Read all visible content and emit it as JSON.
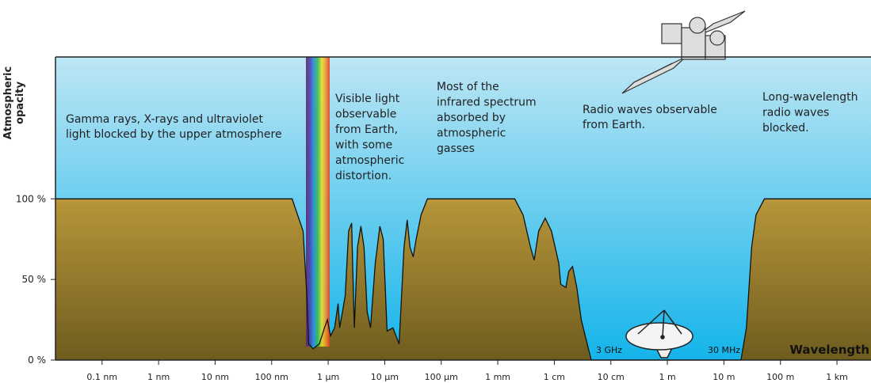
{
  "chart_data": {
    "type": "area",
    "ylabel": [
      "Atmospheric",
      "opacity"
    ],
    "xlabel": "Wavelength",
    "xscale": "log",
    "xlim": [
      1.5e-11,
      4000
    ],
    "ylim": [
      0,
      188
    ],
    "xticks": [
      {
        "value": 1e-10,
        "label": "0.1 nm"
      },
      {
        "value": 1e-09,
        "label": "1 nm"
      },
      {
        "value": 1e-08,
        "label": "10 nm"
      },
      {
        "value": 1e-07,
        "label": "100 nm"
      },
      {
        "value": 1e-06,
        "label": "1 µm"
      },
      {
        "value": 1e-05,
        "label": "10 µm"
      },
      {
        "value": 0.0001,
        "label": "100 µm"
      },
      {
        "value": 0.001,
        "label": "1 mm"
      },
      {
        "value": 0.01,
        "label": "1 cm"
      },
      {
        "value": 0.1,
        "label": "10 cm"
      },
      {
        "value": 1,
        "label": "1 m"
      },
      {
        "value": 10,
        "label": "10 m"
      },
      {
        "value": 100,
        "label": "100 m"
      },
      {
        "value": 1000,
        "label": "1 km"
      }
    ],
    "yticks": [
      {
        "value": 0,
        "label": "0 %"
      },
      {
        "value": 50,
        "label": "50 %"
      },
      {
        "value": 100,
        "label": "100 %"
      }
    ],
    "color": "#a8882e",
    "x": [
      1.5e-11,
      2.3e-07,
      3.6e-07,
      4.2e-07,
      4.5e-07,
      5.4e-07,
      7e-07,
      8.6e-07,
      9.7e-07,
      1.1e-06,
      1.3e-06,
      1.5e-06,
      1.6e-06,
      2e-06,
      2.3e-06,
      2.6e-06,
      2.7e-06,
      2.9e-06,
      3.3e-06,
      3.8e-06,
      4.3e-06,
      4.9e-06,
      5.6e-06,
      6.8e-06,
      8.2e-06,
      9.4e-06,
      1.1e-05,
      1.4e-05,
      1.8e-05,
      2.2e-05,
      2.5e-05,
      2.8e-05,
      3.2e-05,
      3.6e-05,
      4.4e-05,
      5.7e-05,
      0.002,
      0.0028,
      0.0038,
      0.0044,
      0.0053,
      0.0069,
      0.0089,
      0.012,
      0.013,
      0.016,
      0.018,
      0.021,
      0.025,
      0.03,
      0.045,
      20,
      25,
      31,
      37,
      52,
      4000
    ],
    "values": [
      100,
      100,
      80,
      40,
      10,
      7,
      10,
      20,
      25,
      15,
      20,
      35,
      20,
      40,
      80,
      85,
      60,
      20,
      70,
      83,
      70,
      30,
      20,
      60,
      83,
      75,
      18,
      20,
      10,
      70,
      87,
      70,
      64,
      75,
      90,
      100,
      100,
      90,
      70,
      62,
      80,
      88,
      80,
      60,
      47,
      45,
      55,
      58,
      45,
      25,
      0,
      0,
      20,
      70,
      90,
      100,
      100
    ],
    "annotations": [
      [
        "Gamma rays, X-rays and ultraviolet",
        "light blocked by the upper atmosphere"
      ],
      [
        "Visible light",
        "observable",
        "from Earth,",
        "with some",
        "atmospheric",
        "distortion."
      ],
      [
        "Most of the",
        "infrared spectrum",
        "absorbed by",
        "atmospheric",
        "gasses"
      ],
      [
        "Radio waves observable",
        "from Earth."
      ],
      [
        "Long-wavelength",
        "radio waves",
        "blocked."
      ]
    ],
    "frequency_labels": [
      "3 GHz",
      "30 MHz"
    ]
  }
}
